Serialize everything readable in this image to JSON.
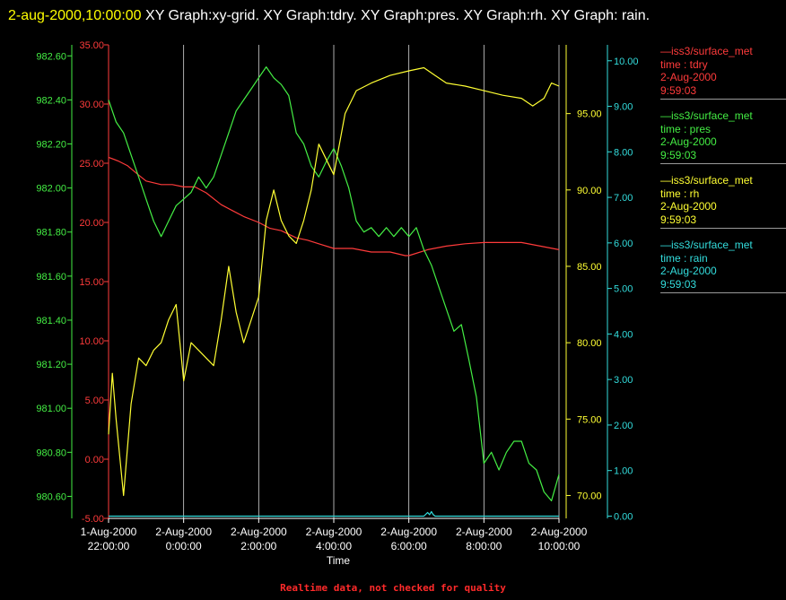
{
  "header": {
    "datetime": "2-aug-2000,10:00:00",
    "graphs": "XY Graph:xy-grid.  XY Graph:tdry.  XY Graph:pres.  XY Graph:rh.  XY Graph: rain."
  },
  "colors": {
    "background": "#000000",
    "tdry": "#ff3b3b",
    "pres": "#44ee44",
    "rh": "#ffff33",
    "rain": "#33dddd",
    "grid": "#ffffff",
    "footer": "#ff2a2a"
  },
  "legend": [
    {
      "line": "—iss3/surface_met",
      "field": "time : tdry",
      "date": "2-Aug-2000",
      "time": "9:59:03",
      "color": "#ff3b3b"
    },
    {
      "line": "—iss3/surface_met",
      "field": "time : pres",
      "date": "2-Aug-2000",
      "time": "9:59:03",
      "color": "#44ee44"
    },
    {
      "line": "—iss3/surface_met",
      "field": "time : rh",
      "date": "2-Aug-2000",
      "time": "9:59:03",
      "color": "#ffff33"
    },
    {
      "line": "—iss3/surface_met",
      "field": "time : rain",
      "date": "2-Aug-2000",
      "time": "9:59:03",
      "color": "#33dddd"
    }
  ],
  "footer": "Realtime data, not checked for quality",
  "chart_data": {
    "type": "line",
    "xlabel": "Time",
    "x_ticks": [
      {
        "date": "1-Aug-2000",
        "time": "22:00:00"
      },
      {
        "date": "2-Aug-2000",
        "time": "0:00:00"
      },
      {
        "date": "2-Aug-2000",
        "time": "2:00:00"
      },
      {
        "date": "2-Aug-2000",
        "time": "4:00:00"
      },
      {
        "date": "2-Aug-2000",
        "time": "6:00:00"
      },
      {
        "date": "2-Aug-2000",
        "time": "8:00:00"
      },
      {
        "date": "2-Aug-2000",
        "time": "10:00:00"
      }
    ],
    "xlim_hours_relative_to_2_aug_00_00": [
      -2,
      10
    ],
    "vertical_grid": true,
    "axes": {
      "tdry": {
        "ylim": [
          -5,
          35
        ],
        "ticks": [
          "-5.00",
          "0.00",
          "5.00",
          "10.00",
          "15.00",
          "20.00",
          "25.00",
          "30.00",
          "35.00"
        ]
      },
      "pres": {
        "ylim": [
          980.5,
          982.65
        ],
        "ticks": [
          "980.60",
          "980.80",
          "981.00",
          "981.20",
          "981.40",
          "981.60",
          "981.80",
          "982.00",
          "982.20",
          "982.40",
          "982.60"
        ]
      },
      "rh": {
        "ylim": [
          68.5,
          99.5
        ],
        "ticks": [
          "70.00",
          "75.00",
          "80.00",
          "85.00",
          "90.00",
          "95.00"
        ]
      },
      "rain": {
        "ylim": [
          -0.05,
          10.35
        ],
        "ticks": [
          "0.00",
          "1.00",
          "2.00",
          "3.00",
          "4.00",
          "5.00",
          "6.00",
          "7.00",
          "8.00",
          "9.00",
          "10.00"
        ]
      }
    },
    "series": [
      {
        "name": "iss3/surface_met time : tdry",
        "axis": "tdry",
        "x": [
          -2,
          -1.75,
          -1.5,
          -1.2,
          -1,
          -0.6,
          -0.3,
          0,
          0.3,
          0.6,
          1,
          1.3,
          1.6,
          2,
          2.3,
          2.6,
          3,
          3.3,
          3.6,
          4,
          4.5,
          5,
          5.5,
          5.9,
          6,
          6.5,
          7,
          7.5,
          8,
          8.5,
          9,
          9.5,
          10
        ],
        "y": [
          25.5,
          25.2,
          24.8,
          24.0,
          23.5,
          23.2,
          23.2,
          23.0,
          23.0,
          22.5,
          21.5,
          21.0,
          20.5,
          20.0,
          19.5,
          19.3,
          18.7,
          18.5,
          18.2,
          17.8,
          17.8,
          17.5,
          17.5,
          17.2,
          17.2,
          17.7,
          18.0,
          18.2,
          18.3,
          18.3,
          18.3,
          18.0,
          17.7
        ]
      },
      {
        "name": "iss3/surface_met time : pres",
        "axis": "pres",
        "x": [
          -2,
          -1.9,
          -1.8,
          -1.6,
          -1.4,
          -1.2,
          -1.0,
          -0.8,
          -0.6,
          -0.4,
          -0.2,
          0,
          0.2,
          0.4,
          0.6,
          0.8,
          1.0,
          1.2,
          1.4,
          1.6,
          1.8,
          2.0,
          2.2,
          2.4,
          2.6,
          2.8,
          3.0,
          3.2,
          3.4,
          3.6,
          3.8,
          4.0,
          4.2,
          4.4,
          4.6,
          4.8,
          5.0,
          5.2,
          5.4,
          5.6,
          5.8,
          6.0,
          6.2,
          6.4,
          6.6,
          6.8,
          7.0,
          7.2,
          7.4,
          7.6,
          7.8,
          8.0,
          8.2,
          8.4,
          8.6,
          8.8,
          9.0,
          9.2,
          9.4,
          9.6,
          9.8,
          10.0
        ],
        "y": [
          982.4,
          982.35,
          982.3,
          982.25,
          982.15,
          982.05,
          981.95,
          981.85,
          981.78,
          981.85,
          981.92,
          981.95,
          981.98,
          982.05,
          982.0,
          982.05,
          982.15,
          982.25,
          982.35,
          982.4,
          982.45,
          982.5,
          982.55,
          982.5,
          982.47,
          982.42,
          982.25,
          982.2,
          982.1,
          982.05,
          982.12,
          982.18,
          982.1,
          982.0,
          981.85,
          981.8,
          981.82,
          981.78,
          981.82,
          981.78,
          981.82,
          981.78,
          981.82,
          981.72,
          981.65,
          981.55,
          981.45,
          981.35,
          981.38,
          981.22,
          981.05,
          980.75,
          980.8,
          980.72,
          980.8,
          980.85,
          980.85,
          980.75,
          980.72,
          980.62,
          980.58,
          980.7
        ]
      },
      {
        "name": "iss3/surface_met time : rh",
        "axis": "rh",
        "x": [
          -2,
          -1.9,
          -1.8,
          -1.6,
          -1.4,
          -1.2,
          -1.0,
          -0.8,
          -0.6,
          -0.4,
          -0.2,
          0,
          0.2,
          0.4,
          0.6,
          0.8,
          1.0,
          1.2,
          1.4,
          1.6,
          1.8,
          2.0,
          2.2,
          2.4,
          2.6,
          2.8,
          3.0,
          3.2,
          3.4,
          3.6,
          3.8,
          4.0,
          4.3,
          4.6,
          5.0,
          5.5,
          6.0,
          6.4,
          6.7,
          7.0,
          7.5,
          8.0,
          8.5,
          9.0,
          9.3,
          9.6,
          9.8,
          10.0
        ],
        "y": [
          74,
          78,
          75,
          70,
          76,
          79,
          78.5,
          79.5,
          80,
          81.5,
          82.5,
          77.5,
          80,
          79.5,
          79,
          78.5,
          81.5,
          85,
          82,
          80,
          81.5,
          83,
          88,
          90,
          88,
          87,
          86.5,
          88,
          90,
          93,
          92,
          91,
          95,
          96.5,
          97,
          97.5,
          97.8,
          98,
          97.5,
          97,
          96.8,
          96.5,
          96.2,
          96,
          95.5,
          96,
          97,
          96.8
        ]
      },
      {
        "name": "iss3/surface_met time : rain",
        "axis": "rain",
        "x": [
          -2,
          6.4,
          6.5,
          6.55,
          6.6,
          6.65,
          6.7,
          10
        ],
        "y": [
          0,
          0,
          0.08,
          0.03,
          0.1,
          0.03,
          0,
          0
        ]
      }
    ]
  }
}
